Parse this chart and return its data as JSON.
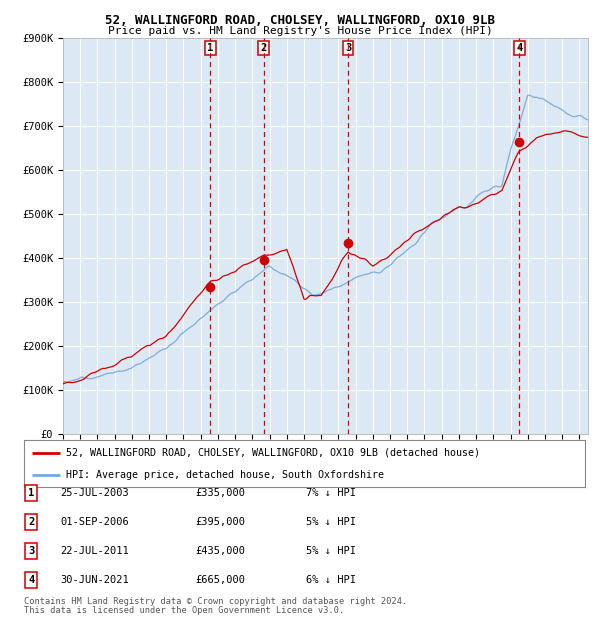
{
  "title1": "52, WALLINGFORD ROAD, CHOLSEY, WALLINGFORD, OX10 9LB",
  "title2": "Price paid vs. HM Land Registry's House Price Index (HPI)",
  "bg_color": "#dce9f5",
  "hpi_color": "#7aaad4",
  "price_color": "#cc0000",
  "marker_color": "#cc0000",
  "vline_color": "#cc0000",
  "ylim": [
    0,
    900000
  ],
  "yticks": [
    0,
    100000,
    200000,
    300000,
    400000,
    500000,
    600000,
    700000,
    800000,
    900000
  ],
  "ytick_labels": [
    "£0",
    "£100K",
    "£200K",
    "£300K",
    "£400K",
    "£500K",
    "£600K",
    "£700K",
    "£800K",
    "£900K"
  ],
  "transactions": [
    {
      "label": "1",
      "date_num": 2003.56,
      "price": 335000,
      "date_str": "25-JUL-2003",
      "hpi_pct": "7%"
    },
    {
      "label": "2",
      "date_num": 2006.67,
      "price": 395000,
      "date_str": "01-SEP-2006",
      "hpi_pct": "5%"
    },
    {
      "label": "3",
      "date_num": 2011.56,
      "price": 435000,
      "date_str": "22-JUL-2011",
      "hpi_pct": "5%"
    },
    {
      "label": "4",
      "date_num": 2021.5,
      "price": 665000,
      "date_str": "30-JUN-2021",
      "hpi_pct": "6%"
    }
  ],
  "legend_line1": "52, WALLINGFORD ROAD, CHOLSEY, WALLINGFORD, OX10 9LB (detached house)",
  "legend_line2": "HPI: Average price, detached house, South Oxfordshire",
  "footer1": "Contains HM Land Registry data © Crown copyright and database right 2024.",
  "footer2": "This data is licensed under the Open Government Licence v3.0.",
  "xmin": 1995.0,
  "xmax": 2025.5
}
